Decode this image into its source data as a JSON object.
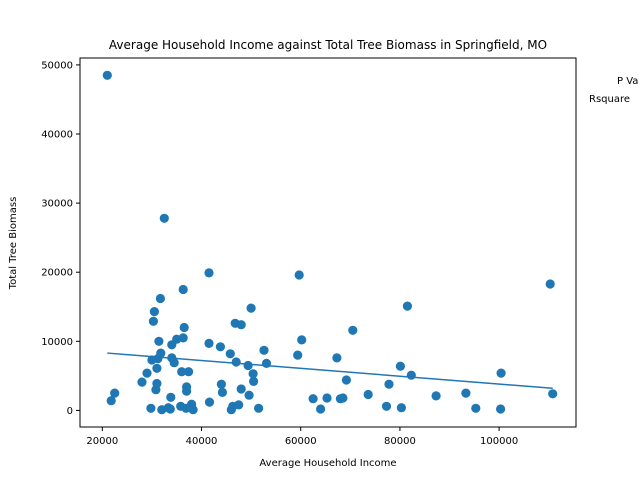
{
  "chart_data": {
    "type": "scatter",
    "title": "Average Household Income against Total Tree Biomass in Springfield, MO",
    "xlabel": "Average Household Income",
    "ylabel": "Total Tree Biomass",
    "xlim": [
      15500,
      115500
    ],
    "ylim": [
      -2400,
      51000
    ],
    "x_ticks": [
      20000,
      40000,
      60000,
      80000,
      100000
    ],
    "y_ticks": [
      0,
      10000,
      20000,
      30000,
      40000,
      50000
    ],
    "grid": false,
    "annotations": [
      "P Va",
      "Rsquare"
    ],
    "series": [
      {
        "color": "#1f77b4",
        "points": [
          [
            21000,
            48500
          ],
          [
            21800,
            1400
          ],
          [
            22500,
            2500
          ],
          [
            28000,
            4100
          ],
          [
            29000,
            5400
          ],
          [
            29800,
            300
          ],
          [
            30000,
            7300
          ],
          [
            30300,
            12900
          ],
          [
            30500,
            14300
          ],
          [
            30800,
            3000
          ],
          [
            31000,
            6100
          ],
          [
            31000,
            3900
          ],
          [
            31200,
            7500
          ],
          [
            31400,
            10000
          ],
          [
            31700,
            16200
          ],
          [
            31800,
            8300
          ],
          [
            32000,
            100
          ],
          [
            32500,
            27800
          ],
          [
            33300,
            400
          ],
          [
            33700,
            200
          ],
          [
            33800,
            1900
          ],
          [
            34000,
            9500
          ],
          [
            34000,
            7600
          ],
          [
            34500,
            6900
          ],
          [
            35000,
            10300
          ],
          [
            35800,
            600
          ],
          [
            36000,
            5600
          ],
          [
            36300,
            17500
          ],
          [
            36300,
            10500
          ],
          [
            36500,
            12000
          ],
          [
            36900,
            300
          ],
          [
            37000,
            3400
          ],
          [
            37000,
            2800
          ],
          [
            37400,
            5600
          ],
          [
            37800,
            500
          ],
          [
            38000,
            900
          ],
          [
            38300,
            100
          ],
          [
            41500,
            19900
          ],
          [
            41500,
            9700
          ],
          [
            41600,
            1200
          ],
          [
            43800,
            9200
          ],
          [
            44000,
            3800
          ],
          [
            44200,
            2600
          ],
          [
            45800,
            8200
          ],
          [
            46000,
            100
          ],
          [
            46300,
            600
          ],
          [
            46800,
            12600
          ],
          [
            47000,
            7000
          ],
          [
            47500,
            800
          ],
          [
            48000,
            12400
          ],
          [
            48000,
            3100
          ],
          [
            49400,
            6500
          ],
          [
            49600,
            2200
          ],
          [
            50000,
            14800
          ],
          [
            50400,
            5300
          ],
          [
            50500,
            4200
          ],
          [
            51500,
            300
          ],
          [
            52600,
            8700
          ],
          [
            53100,
            6800
          ],
          [
            59400,
            8000
          ],
          [
            59700,
            19600
          ],
          [
            60200,
            10200
          ],
          [
            62500,
            1700
          ],
          [
            64000,
            200
          ],
          [
            65300,
            1800
          ],
          [
            67300,
            7600
          ],
          [
            68000,
            1700
          ],
          [
            68500,
            1800
          ],
          [
            69200,
            4400
          ],
          [
            70500,
            11600
          ],
          [
            73600,
            2300
          ],
          [
            77300,
            600
          ],
          [
            77800,
            3800
          ],
          [
            80100,
            6400
          ],
          [
            80300,
            400
          ],
          [
            81500,
            15100
          ],
          [
            82300,
            5100
          ],
          [
            87300,
            2100
          ],
          [
            93300,
            2500
          ],
          [
            95300,
            300
          ],
          [
            100300,
            200
          ],
          [
            100400,
            5400
          ],
          [
            110300,
            18300
          ],
          [
            110800,
            2400
          ]
        ]
      }
    ],
    "trendline": {
      "x": [
        21000,
        110800
      ],
      "y": [
        8300,
        3200
      ],
      "color": "#1f77b4"
    }
  }
}
